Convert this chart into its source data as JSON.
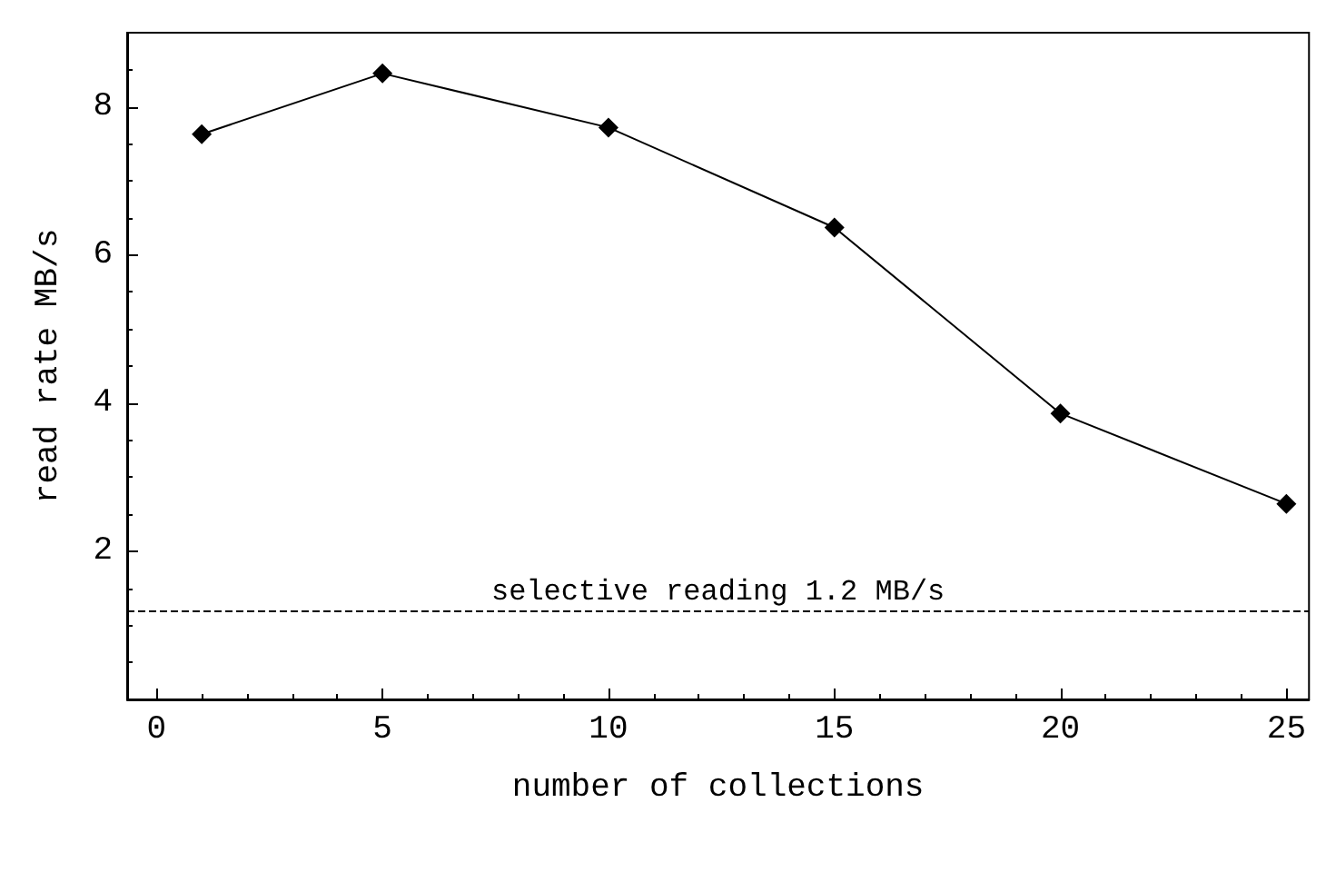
{
  "chart_data": {
    "type": "line",
    "xlabel": "number of collections",
    "ylabel": "read rate MB/s",
    "x": [
      1,
      5,
      10,
      15,
      20,
      25
    ],
    "series": [
      {
        "color": "#000000",
        "values": [
          7.63,
          8.45,
          7.72,
          6.37,
          3.86,
          2.64
        ]
      }
    ],
    "xlim": [
      -0.65,
      25.5
    ],
    "xticks": [
      0,
      5,
      10,
      15,
      20,
      25
    ],
    "ylim": [
      0,
      9
    ],
    "yticks": [
      2,
      4,
      6,
      8
    ],
    "ref_lines": [
      {
        "axis": "y",
        "value": 1.2,
        "label": "selective reading 1.2 MB/s",
        "line_style": "dashed",
        "color": "#000000"
      }
    ],
    "marker": "diamond",
    "line_style": "solid",
    "grid": false
  }
}
